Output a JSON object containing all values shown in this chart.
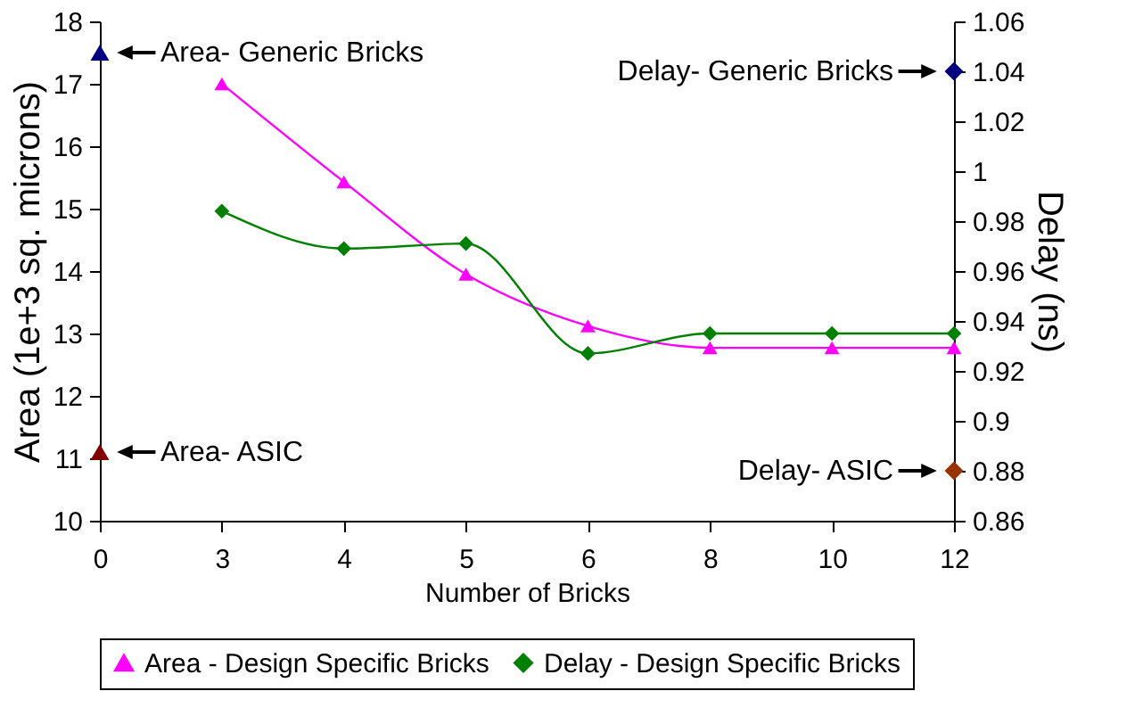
{
  "chart_data": {
    "type": "line",
    "xlabel": "Number of Bricks",
    "ylabel": "Area (1e+3 sq. microns)",
    "y2label": "Delay (ns)",
    "categories": [
      "0",
      "3",
      "4",
      "5",
      "6",
      "8",
      "10",
      "12"
    ],
    "ylim": [
      10,
      18
    ],
    "yticks": [
      10,
      11,
      12,
      13,
      14,
      15,
      16,
      17,
      18
    ],
    "y2lim": [
      0.86,
      1.06
    ],
    "y2ticks": [
      0.86,
      0.88,
      0.9,
      0.92,
      0.94,
      0.96,
      0.98,
      1,
      1.02,
      1.04,
      1.06
    ],
    "grid": false,
    "legend": "bottom",
    "series": [
      {
        "name": "Area - Design Specific Bricks",
        "type": "line",
        "axis": "y",
        "marker": "triangle",
        "color": "#ff00ff",
        "values": [
          null,
          17.0,
          15.43,
          13.95,
          13.12,
          12.77,
          12.77,
          12.77
        ]
      },
      {
        "name": "Delay - Design Specific Bricks",
        "type": "line",
        "axis": "y2",
        "marker": "diamond",
        "color": "#008000",
        "values": [
          null,
          0.984,
          0.969,
          0.971,
          0.927,
          0.935,
          0.935,
          0.935
        ]
      },
      {
        "name": "Area- Generic Bricks",
        "type": "scatter",
        "axis": "y",
        "marker": "triangle",
        "color": "#000080",
        "values": [
          17.5,
          null,
          null,
          null,
          null,
          null,
          null,
          null
        ]
      },
      {
        "name": "Area- ASIC",
        "type": "scatter",
        "axis": "y",
        "marker": "triangle",
        "color": "#800000",
        "values": [
          11.1,
          null,
          null,
          null,
          null,
          null,
          null,
          null
        ]
      },
      {
        "name": "Delay- Generic Bricks",
        "type": "scatter",
        "axis": "y2",
        "marker": "diamond",
        "color": "#000080",
        "values": [
          null,
          null,
          null,
          null,
          null,
          null,
          null,
          1.04
        ]
      },
      {
        "name": "Delay- ASIC",
        "type": "scatter",
        "axis": "y2",
        "marker": "diamond",
        "color": "#993300",
        "values": [
          null,
          null,
          null,
          null,
          null,
          null,
          null,
          0.88
        ]
      }
    ]
  }
}
